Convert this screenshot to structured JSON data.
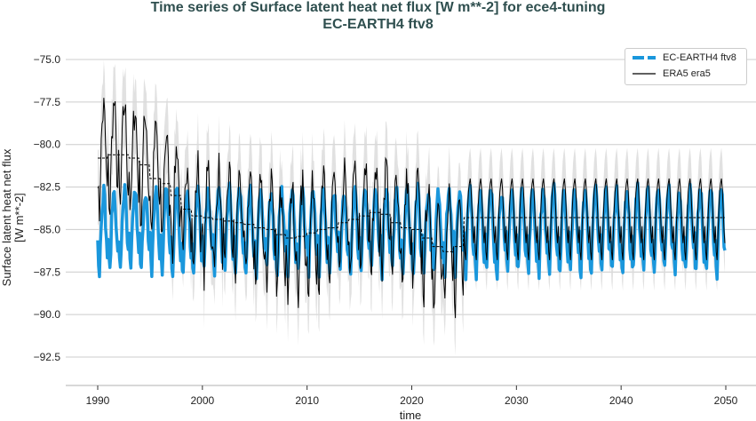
{
  "chart_data": {
    "type": "line",
    "title": "Time series of Surface latent heat net flux [W m**-2] for ece4-tuning",
    "subtitle": "EC-EARTH4 ftv8",
    "xlabel": "time",
    "ylabel_lines": [
      "Surface latent heat net flux",
      "[W m**-2]"
    ],
    "xlim": [
      1987,
      2053
    ],
    "ylim": [
      -94.2,
      -74.5
    ],
    "xticks": [
      "1990",
      "2000",
      "2010",
      "2020",
      "2030",
      "2040",
      "2050"
    ],
    "yticks": [
      "-75.0",
      "-77.5",
      "-80.0",
      "-82.5",
      "-85.0",
      "-87.5",
      "-90.0",
      "-92.5"
    ],
    "grid": "horizontal",
    "legend": {
      "placement": "top-right",
      "entries": [
        "EC-EARTH4 ftv8",
        "ERA5 era5"
      ]
    },
    "series": [
      {
        "name": "EC-EARTH4 ftv8",
        "color": "#1a97dc",
        "style": "thick",
        "x_range": [
          1990,
          2050
        ],
        "monthly_climatology": [
          -85.5,
          -87.0,
          -87.5,
          -86.0,
          -84.5,
          -83.5,
          -83.0,
          -82.7,
          -83.3,
          -84.5,
          -85.8,
          -86.5
        ]
      },
      {
        "name": "ERA5 era5",
        "color": "#000000",
        "style": "thin",
        "band_color": "#d9d9d9",
        "years": [
          1990,
          1991,
          1992,
          1993,
          1994,
          1995,
          1996,
          1997,
          1998,
          1999,
          2000,
          2001,
          2002,
          2003,
          2004,
          2005,
          2006,
          2007,
          2008,
          2009,
          2010,
          2011,
          2012,
          2013,
          2014,
          2015,
          2016,
          2017,
          2018,
          2019,
          2020,
          2021,
          2022,
          2023,
          2024
        ],
        "annual_mean": [
          -80.8,
          -80.6,
          -80.6,
          -80.8,
          -81.2,
          -82.0,
          -82.3,
          -83.0,
          -83.8,
          -84.2,
          -84.3,
          -84.4,
          -84.5,
          -84.6,
          -84.7,
          -84.9,
          -85.0,
          -85.3,
          -85.5,
          -85.4,
          -85.2,
          -85.0,
          -84.9,
          -84.6,
          -84.4,
          -84.2,
          -84.0,
          -84.1,
          -84.6,
          -84.9,
          -85.0,
          -85.5,
          -86.0,
          -86.3,
          -86.0
        ],
        "climatology_mean_after_2025": -84.3
      }
    ]
  }
}
